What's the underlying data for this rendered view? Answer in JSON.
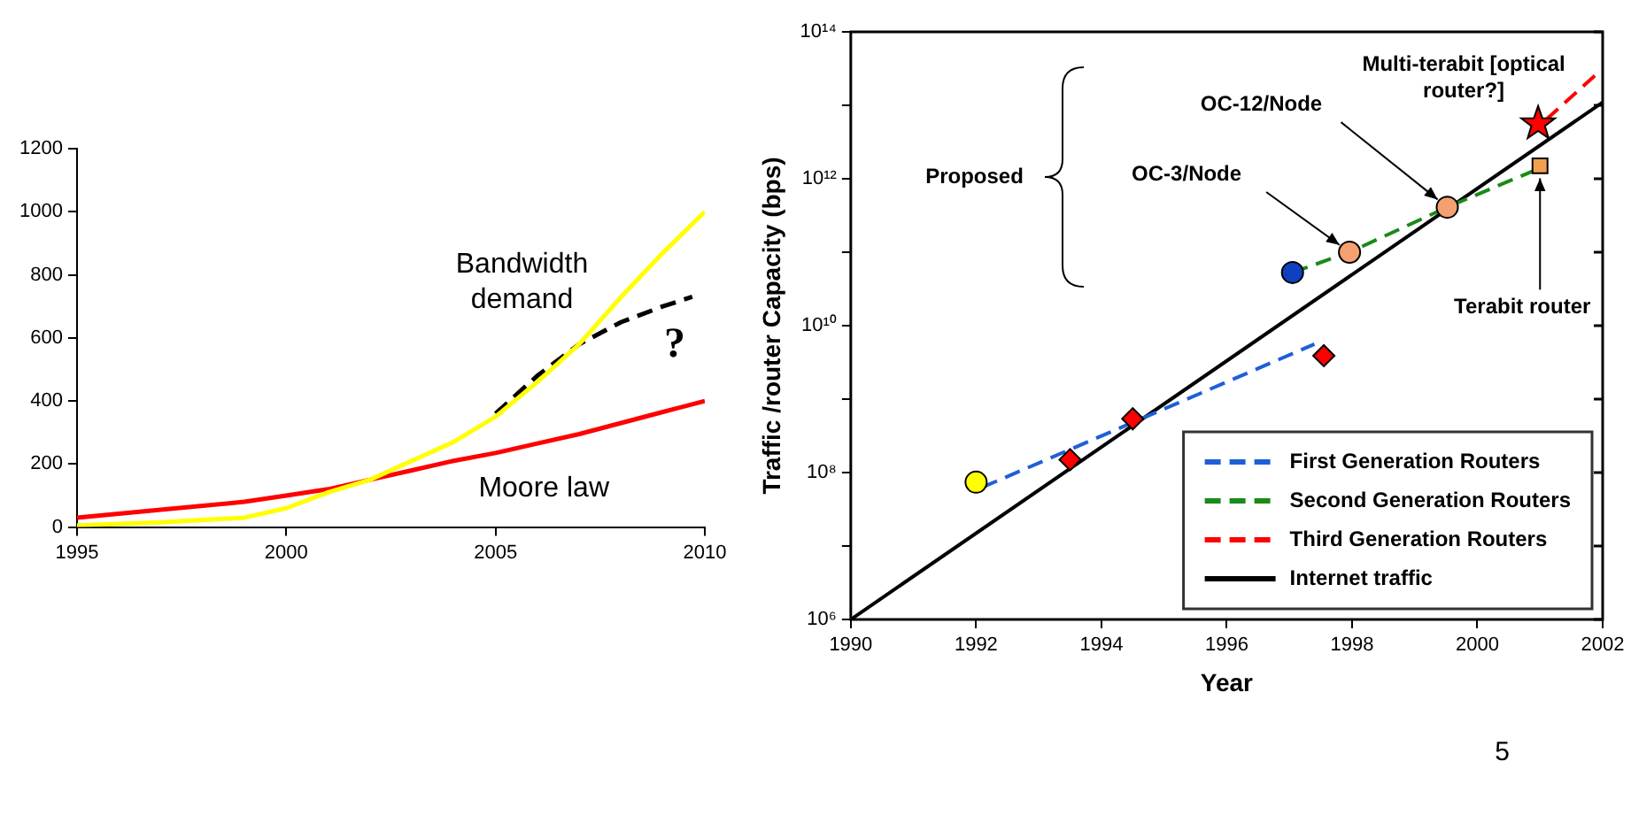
{
  "chart_data": [
    {
      "type": "line",
      "xlim": [
        1995,
        2010
      ],
      "xticks": [
        1995,
        2000,
        2005,
        2010
      ],
      "ylim": [
        0,
        1200
      ],
      "yticks": [
        0,
        200,
        400,
        600,
        800,
        1000,
        1200
      ],
      "grid": false,
      "legend": false,
      "marker": "none",
      "series": [
        {
          "name": "Bandwidth demand",
          "color": "#ffff00",
          "line_style": "solid",
          "x": [
            1995,
            1997,
            1999,
            2000,
            2001,
            2002,
            2003,
            2004,
            2005,
            2006,
            2007,
            2008,
            2009,
            2010
          ],
          "values": [
            5,
            15,
            30,
            60,
            110,
            150,
            210,
            270,
            350,
            460,
            580,
            730,
            870,
            1000
          ]
        },
        {
          "name": "Moore law",
          "color": "#ff0000",
          "line_style": "solid",
          "x": [
            1995,
            1997,
            1999,
            2000,
            2001,
            2002,
            2003,
            2004,
            2005,
            2006,
            2007,
            2008,
            2009,
            2010
          ],
          "values": [
            30,
            55,
            80,
            100,
            120,
            150,
            180,
            210,
            235,
            265,
            295,
            330,
            365,
            400
          ]
        },
        {
          "color": "#000000",
          "line_style": "dashed",
          "x": [
            2005,
            2006,
            2007,
            2008,
            2009,
            2009.7
          ],
          "values": [
            360,
            480,
            580,
            650,
            700,
            730
          ]
        }
      ],
      "annotations": [
        "?"
      ]
    },
    {
      "type": "line",
      "xlabel": "Year",
      "ylabel": "Traffic /router Capacity (bps)",
      "log": "y",
      "xlim": [
        1990,
        2002
      ],
      "xticks": [
        1990,
        1992,
        1994,
        1996,
        1998,
        2000,
        2002
      ],
      "ylim": [
        1000000,
        100000000000000
      ],
      "yticks": [
        {
          "value": 1000000,
          "label": "10⁶"
        },
        {
          "value": 10000000,
          "label": null
        },
        {
          "value": 100000000,
          "label": "10⁸"
        },
        {
          "value": 1000000000,
          "label": null
        },
        {
          "value": 10000000000,
          "label": "10¹⁰"
        },
        {
          "value": 100000000000,
          "label": null
        },
        {
          "value": 1000000000000,
          "label": "10¹²"
        },
        {
          "value": 10000000000000,
          "label": null
        },
        {
          "value": 100000000000000,
          "label": "10¹⁴"
        }
      ],
      "grid": false,
      "legend": "bottom right",
      "series": [
        {
          "name": "First Generation Routers",
          "color": "#1f5fd6",
          "line_style": "dashed",
          "marker": "none",
          "x": [
            1992.1,
            1997.4
          ],
          "values": [
            63000000,
            5600000000
          ]
        },
        {
          "name": "Second Generation Routers",
          "color": "#1a8a1a",
          "line_style": "dashed",
          "marker": "none",
          "x": [
            1997.05,
            1997.96,
            1999.52,
            2001
          ],
          "values": [
            53000000000,
            100000000000,
            410000000000,
            1400000000000
          ]
        },
        {
          "name": "Third Generation Routers",
          "color": "#ff0000",
          "line_style": "dashed",
          "marker": "none",
          "x": [
            2001.1,
            2001.95
          ],
          "values": [
            6400000000000,
            29000000000000
          ]
        },
        {
          "name": "Internet traffic",
          "color": "#000000",
          "line_style": "solid",
          "marker": "none",
          "x": [
            1990,
            2002
          ],
          "values": [
            1000000,
            11000000000000
          ]
        },
        {
          "type": "scatter",
          "color": "#ffff00",
          "marker": "circle",
          "x": [
            1992
          ],
          "values": [
            74000000
          ]
        },
        {
          "type": "scatter",
          "color": "#ff0000",
          "marker": "diamond",
          "x": [
            1993.5,
            1994.5,
            1997.55
          ],
          "values": [
            150000000,
            540000000,
            3900000000
          ]
        },
        {
          "type": "scatter",
          "color": "#1040c0",
          "marker": "circle",
          "x": [
            1997.05
          ],
          "values": [
            53000000000
          ]
        },
        {
          "type": "scatter",
          "color": "#f4a070",
          "marker": "circle",
          "x": [
            1997.96,
            1999.52
          ],
          "values": [
            100000000000,
            410000000000
          ]
        },
        {
          "type": "scatter",
          "color": "#f0a050",
          "marker": "square",
          "x": [
            2001
          ],
          "values": [
            1500000000000
          ]
        },
        {
          "type": "scatter",
          "color": "#ff0000",
          "marker": "star",
          "x": [
            2000.97
          ],
          "values": [
            5600000000000
          ]
        }
      ],
      "annotations": [
        "Proposed",
        {
          "text": "OC-3/Node",
          "x": 1997.96,
          "y": 100000000000
        },
        {
          "text": "OC-12/Node",
          "x": 1999.52,
          "y": 410000000000
        },
        {
          "text": "Terabit router",
          "x": 2001,
          "y": 1500000000000
        },
        {
          "text": "Multi-terabit [optical router?]",
          "x": 2000.97,
          "y": 5600000000000
        },
        "5"
      ]
    }
  ]
}
